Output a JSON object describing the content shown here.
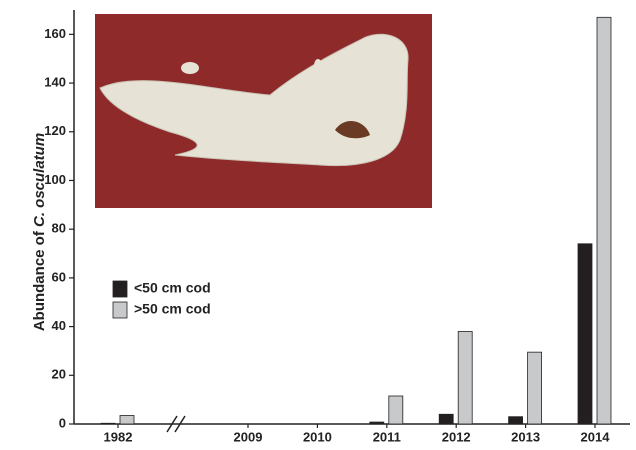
{
  "chart_data": {
    "type": "bar",
    "ylabel": "Abundance of",
    "ylabel_italic": "C. osculatum",
    "categories": [
      "1982",
      "2009",
      "2010",
      "2011",
      "2012",
      "2013",
      "2014"
    ],
    "series": [
      {
        "name": "<50 cm cod",
        "color": "#231f20",
        "values": [
          0.3,
          0,
          0,
          0.8,
          4,
          3,
          74
        ]
      },
      {
        "name": ">50 cm cod",
        "color": "#c8c9cb",
        "values": [
          3.5,
          0,
          0,
          11.5,
          38,
          29.5,
          167
        ]
      }
    ],
    "ylim": [
      0,
      170
    ],
    "yticks": [
      0,
      20,
      40,
      60,
      80,
      100,
      120,
      140,
      160
    ],
    "axis_break": true
  }
}
